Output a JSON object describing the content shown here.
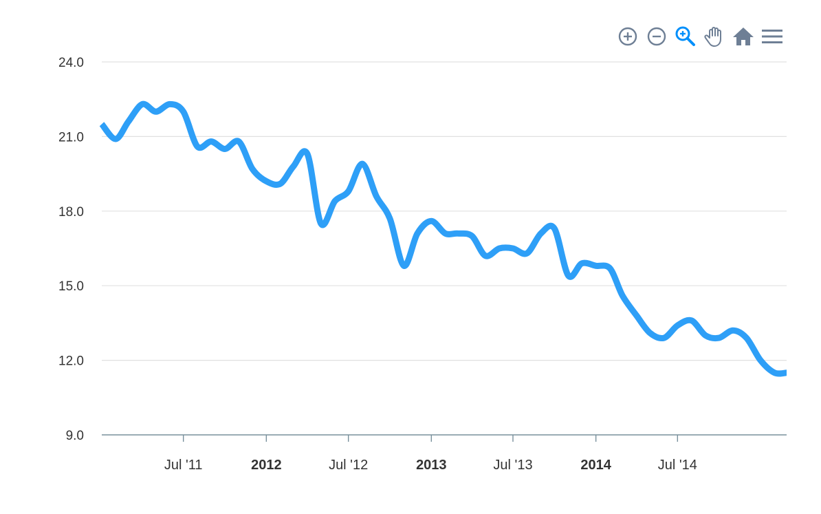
{
  "toolbar": {
    "tools": [
      {
        "name": "zoom-in-icon",
        "color": "#6E7F95"
      },
      {
        "name": "zoom-out-icon",
        "color": "#6E7F95"
      },
      {
        "name": "selection-zoom-icon",
        "color": "#008FFB",
        "active": true
      },
      {
        "name": "pan-hand-icon",
        "color": "#6E7F95"
      },
      {
        "name": "reset-home-icon",
        "color": "#6E7F95"
      },
      {
        "name": "menu-icon",
        "color": "#6E7F95"
      }
    ]
  },
  "chart_data": {
    "type": "line",
    "title": "",
    "xlabel": "",
    "ylabel": "",
    "ylim": [
      9.0,
      24.0
    ],
    "y_ticks": [
      "9.0",
      "12.0",
      "15.0",
      "18.0",
      "21.0",
      "24.0"
    ],
    "xlim": [
      "2011-01-01",
      "2015-02-28"
    ],
    "x_ticks": [
      {
        "date": "2011-07-01",
        "label": "Jul '11",
        "bold": false
      },
      {
        "date": "2012-01-01",
        "label": "2012",
        "bold": true
      },
      {
        "date": "2012-07-01",
        "label": "Jul '12",
        "bold": false
      },
      {
        "date": "2013-01-01",
        "label": "2013",
        "bold": true
      },
      {
        "date": "2013-07-01",
        "label": "Jul '13",
        "bold": false
      },
      {
        "date": "2014-01-01",
        "label": "2014",
        "bold": true
      },
      {
        "date": "2014-07-01",
        "label": "Jul '14",
        "bold": false
      }
    ],
    "grid": true,
    "line_color": "#2E9FF7",
    "series": [
      {
        "x": [
          "2011-01-01",
          "2011-02-01",
          "2011-03-01",
          "2011-04-01",
          "2011-05-01",
          "2011-06-01",
          "2011-07-01",
          "2011-08-01",
          "2011-09-01",
          "2011-10-01",
          "2011-11-01",
          "2011-12-01",
          "2012-01-01",
          "2012-02-01",
          "2012-03-01",
          "2012-04-01",
          "2012-05-01",
          "2012-06-01",
          "2012-07-01",
          "2012-08-01",
          "2012-09-01",
          "2012-10-01",
          "2012-11-01",
          "2012-12-01",
          "2013-01-01",
          "2013-02-01",
          "2013-03-01",
          "2013-04-01",
          "2013-05-01",
          "2013-06-01",
          "2013-07-01",
          "2013-08-01",
          "2013-09-01",
          "2013-10-01",
          "2013-11-01",
          "2013-12-01",
          "2014-01-01",
          "2014-02-01",
          "2014-03-01",
          "2014-04-01",
          "2014-05-01",
          "2014-06-01",
          "2014-07-01",
          "2014-08-01",
          "2014-09-01",
          "2014-10-01",
          "2014-11-01",
          "2014-12-01",
          "2015-01-01",
          "2015-02-01",
          "2015-02-28"
        ],
        "values": [
          21.5,
          20.9,
          21.6,
          22.3,
          22.0,
          22.3,
          22.0,
          20.6,
          20.8,
          20.5,
          20.8,
          19.7,
          19.2,
          19.1,
          19.8,
          20.3,
          17.5,
          18.4,
          18.8,
          19.9,
          18.6,
          17.7,
          15.8,
          17.1,
          17.6,
          17.1,
          17.1,
          17.0,
          16.2,
          16.5,
          16.5,
          16.3,
          17.1,
          17.3,
          15.4,
          15.9,
          15.8,
          15.7,
          14.6,
          13.8,
          13.1,
          12.9,
          13.4,
          13.6,
          13.0,
          12.9,
          13.2,
          12.9,
          12.0,
          11.5,
          11.5
        ]
      }
    ]
  }
}
